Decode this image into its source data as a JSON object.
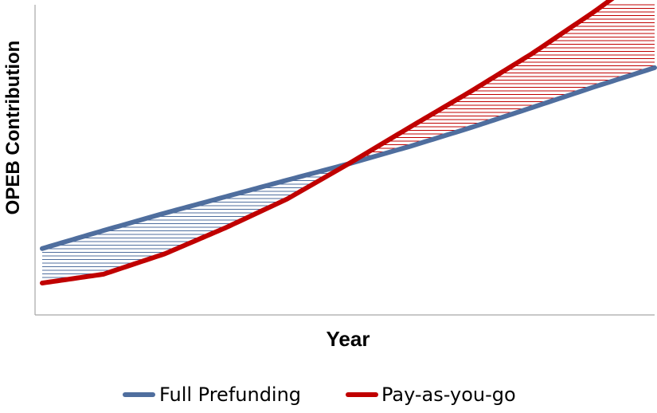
{
  "chart_data": {
    "type": "line",
    "title": "",
    "xlabel": "Year",
    "ylabel": "OPEB Contribution",
    "x": [
      0,
      0.1,
      0.2,
      0.3,
      0.4,
      0.5,
      0.6,
      0.7,
      0.8,
      0.9,
      1.0
    ],
    "xlim": [
      0,
      1
    ],
    "ylim": [
      0,
      1
    ],
    "series": [
      {
        "name": "Full Prefunding",
        "color": "#4F6E9E",
        "values": [
          0.171,
          0.232,
          0.291,
          0.347,
          0.403,
          0.458,
          0.517,
          0.581,
          0.649,
          0.718,
          0.784
        ]
      },
      {
        "name": "Pay-as-you-go",
        "color": "#C00000",
        "values": [
          0.054,
          0.084,
          0.153,
          0.242,
          0.339,
          0.458,
          0.582,
          0.704,
          0.832,
          0.972,
          1.122
        ]
      }
    ],
    "fill_between": {
      "hatch": "horizontal",
      "under_color": "#4F6E9E",
      "over_color": "#C00000"
    },
    "grid": false,
    "legend": "bottom"
  }
}
